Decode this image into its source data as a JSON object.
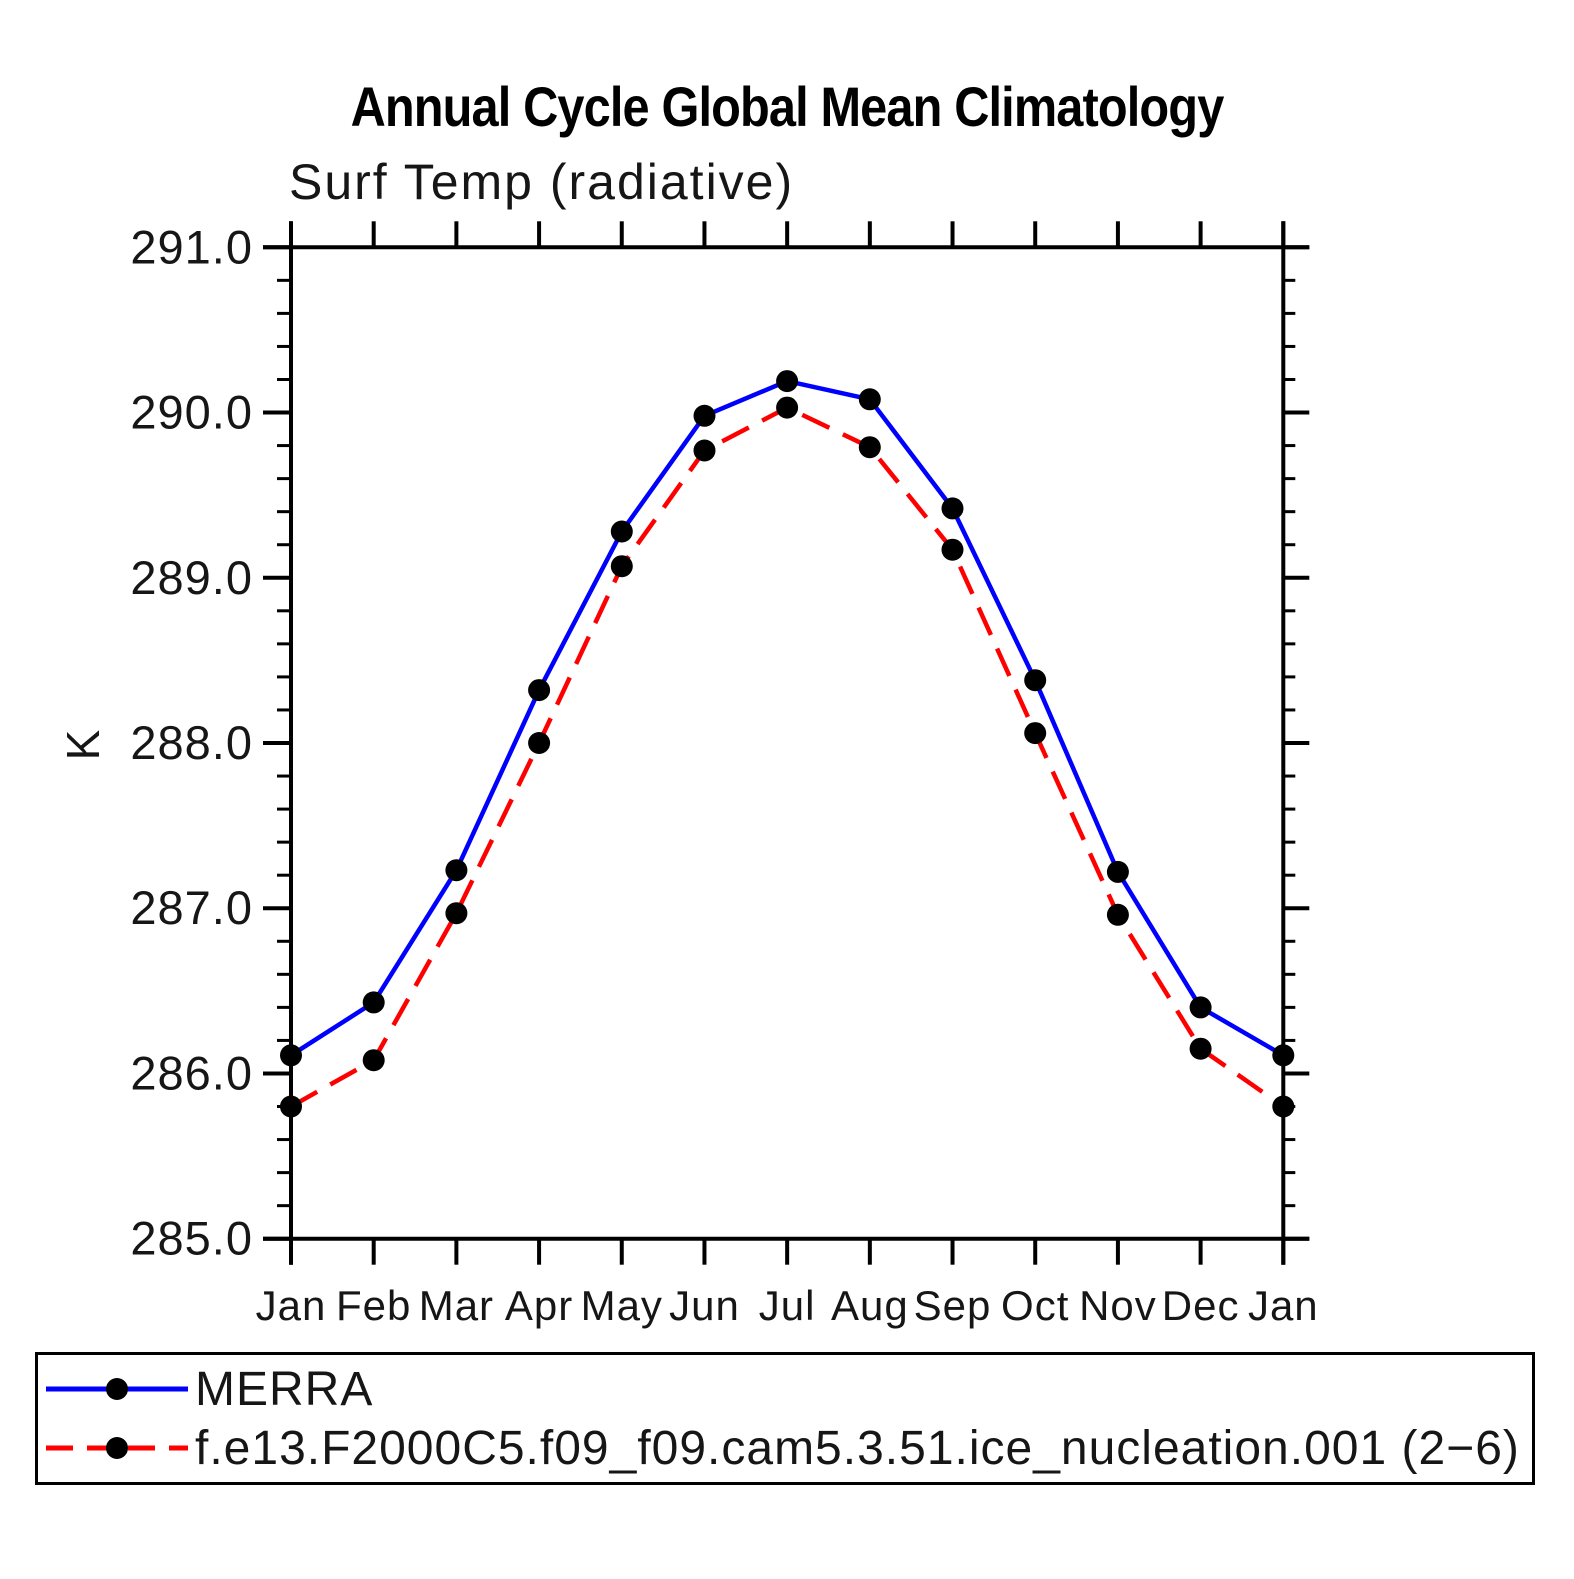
{
  "title": "Annual Cycle Global Mean Climatology",
  "chart_data": {
    "type": "line",
    "title": "Annual Cycle Global Mean Climatology",
    "subtitle": "Surf Temp (radiative)",
    "xlabel": "",
    "ylabel": "K",
    "categories": [
      "Jan",
      "Feb",
      "Mar",
      "Apr",
      "May",
      "Jun",
      "Jul",
      "Aug",
      "Sep",
      "Oct",
      "Nov",
      "Dec",
      "Jan"
    ],
    "ylim": [
      285.0,
      291.0
    ],
    "ytick_step": 1.0,
    "yminor_step": 0.2,
    "ytick_format_decimals": 1,
    "grid": false,
    "legend_position": "bottom",
    "axis_color": "#000000",
    "marker_color": "#000000",
    "series": [
      {
        "name": "MERRA",
        "color": "#0000ff",
        "line_style": "solid",
        "marker": "filled-circle",
        "values": [
          286.11,
          286.43,
          287.23,
          288.32,
          289.28,
          289.98,
          290.19,
          290.08,
          289.42,
          288.38,
          287.22,
          286.4,
          286.11
        ]
      },
      {
        "name": "f.e13.F2000C5.f09_f09.cam5.3.51.ice_nucleation.001 (2−6)",
        "color": "#ff0000",
        "line_style": "dashed",
        "marker": "filled-circle",
        "values": [
          285.8,
          286.08,
          286.97,
          288.0,
          289.07,
          289.77,
          290.03,
          289.79,
          289.17,
          288.06,
          286.96,
          286.15,
          285.8
        ]
      }
    ]
  }
}
